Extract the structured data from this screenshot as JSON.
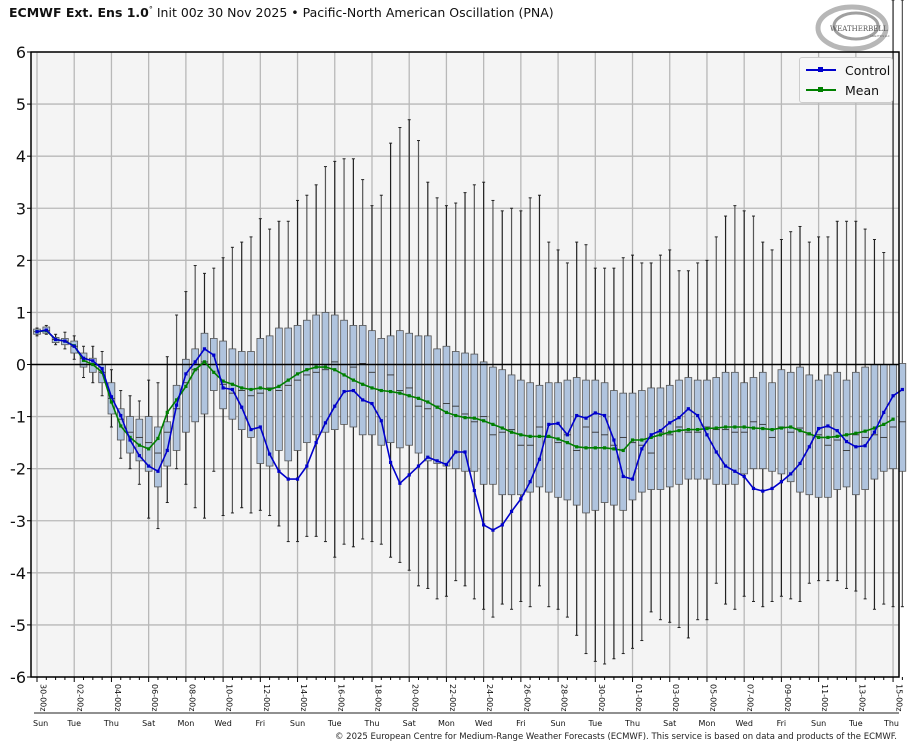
{
  "title": {
    "bold": "ECMWF Ext.  Ens 1.0",
    "degree": "°",
    "rest": " Init 00z 30 Nov 2025 • Pacific-North American Oscillation (PNA)"
  },
  "logo": {
    "text": "WEATHERBELL",
    "subtext": "ANALYTICS LLC"
  },
  "copyright": "© 2025 European Centre for Medium-Range Weather Forecasts (ECMWF). This service is based on data and products of the ECMWF.",
  "colors": {
    "control": "#0000cc",
    "mean": "#008000",
    "box": "#b0c4de",
    "grid": "#b8b8b8",
    "bg": "#f4f4f4"
  },
  "chart_data": {
    "type": "box",
    "title": "Pacific-North American Oscillation (PNA)",
    "ylim": [
      -6,
      6
    ],
    "yticks": [
      "6",
      "5",
      "4",
      "3",
      "2",
      "1",
      "0",
      "-1",
      "-2",
      "-3",
      "-4",
      "-5",
      "-6"
    ],
    "x_step_hours": 12,
    "xtick_labels": [
      "30-00z",
      "02-00z",
      "04-00z",
      "06-00z",
      "08-00z",
      "10-00z",
      "12-00z",
      "14-00z",
      "16-00z",
      "18-00z",
      "20-00z",
      "22-00z",
      "24-00z",
      "26-00z",
      "28-00z",
      "30-00z",
      "01-00z",
      "03-00z",
      "05-00z",
      "07-00z",
      "09-00z",
      "11-00z",
      "13-00z",
      "15-00z"
    ],
    "day_labels": [
      "Sun",
      "Tue",
      "Thu",
      "Sat",
      "Mon",
      "Wed",
      "Fri",
      "Sun",
      "Tue",
      "Thu",
      "Sat",
      "Mon",
      "Wed",
      "Fri",
      "Sun",
      "Tue",
      "Thu",
      "Sat",
      "Mon",
      "Wed",
      "Fri",
      "Sun",
      "Tue",
      "Thu"
    ],
    "legend": {
      "entries": [
        "Control",
        "Mean"
      ],
      "position": "top-right"
    },
    "grid": true,
    "series": [
      {
        "name": "Control",
        "values": [
          0.63,
          0.66,
          0.48,
          0.45,
          0.35,
          0.12,
          0.07,
          -0.08,
          -0.62,
          -0.98,
          -1.45,
          -1.75,
          -1.95,
          -2.05,
          -1.65,
          -0.78,
          -0.18,
          0.05,
          0.3,
          0.18,
          -0.45,
          -0.48,
          -0.82,
          -1.25,
          -1.2,
          -1.72,
          -2.05,
          -2.2,
          -2.2,
          -1.95,
          -1.5,
          -1.12,
          -0.8,
          -0.52,
          -0.5,
          -0.68,
          -0.75,
          -1.08,
          -1.88,
          -2.28,
          -2.12,
          -1.95,
          -1.78,
          -1.85,
          -1.92,
          -1.68,
          -1.68,
          -2.42,
          -3.08,
          -3.18,
          -3.08,
          -2.82,
          -2.58,
          -2.25,
          -1.82,
          -1.15,
          -1.13,
          -1.35,
          -0.98,
          -1.03,
          -0.93,
          -0.98,
          -1.45,
          -2.15,
          -2.2,
          -1.62,
          -1.35,
          -1.27,
          -1.12,
          -1.02,
          -0.85,
          -0.98,
          -1.35,
          -1.68,
          -1.95,
          -2.05,
          -2.15,
          -2.38,
          -2.43,
          -2.38,
          -2.25,
          -2.1,
          -1.9,
          -1.58,
          -1.23,
          -1.18,
          -1.27,
          -1.48,
          -1.58,
          -1.56,
          -1.3,
          -0.92,
          -0.6,
          -0.48
        ]
      },
      {
        "name": "Mean",
        "values": [
          0.63,
          0.65,
          0.48,
          0.45,
          0.36,
          0.08,
          0.0,
          -0.15,
          -0.72,
          -1.18,
          -1.4,
          -1.55,
          -1.62,
          -1.42,
          -0.92,
          -0.68,
          -0.42,
          -0.1,
          0.05,
          -0.15,
          -0.32,
          -0.38,
          -0.45,
          -0.48,
          -0.45,
          -0.48,
          -0.42,
          -0.3,
          -0.18,
          -0.1,
          -0.05,
          -0.05,
          -0.1,
          -0.2,
          -0.3,
          -0.38,
          -0.45,
          -0.5,
          -0.52,
          -0.55,
          -0.6,
          -0.65,
          -0.72,
          -0.82,
          -0.92,
          -0.98,
          -1.02,
          -1.03,
          -1.08,
          -1.15,
          -1.22,
          -1.3,
          -1.35,
          -1.38,
          -1.38,
          -1.38,
          -1.43,
          -1.5,
          -1.58,
          -1.6,
          -1.6,
          -1.6,
          -1.62,
          -1.65,
          -1.45,
          -1.45,
          -1.4,
          -1.35,
          -1.3,
          -1.27,
          -1.25,
          -1.25,
          -1.23,
          -1.22,
          -1.2,
          -1.2,
          -1.2,
          -1.22,
          -1.23,
          -1.25,
          -1.22,
          -1.2,
          -1.27,
          -1.33,
          -1.4,
          -1.4,
          -1.38,
          -1.35,
          -1.32,
          -1.28,
          -1.22,
          -1.15,
          -1.05
        ]
      }
    ],
    "box_stats": {
      "median": [
        0.63,
        0.65,
        0.48,
        0.45,
        0.35,
        0.12,
        0.0,
        -0.15,
        -0.65,
        -1.05,
        -1.3,
        -1.4,
        -1.5,
        -1.7,
        -1.3,
        -0.85,
        -0.35,
        -0.1,
        0.05,
        0.0,
        -0.38,
        -0.55,
        -0.5,
        -0.6,
        -0.55,
        -0.45,
        -0.5,
        -0.4,
        -0.3,
        -0.2,
        -0.15,
        -0.1,
        0.05,
        0.0,
        -0.05,
        0.02,
        -0.15,
        -0.5,
        -0.2,
        -0.5,
        -0.45,
        -0.8,
        -0.85,
        -0.8,
        -0.75,
        -0.8,
        -0.95,
        -1.1,
        -1.0,
        -1.35,
        -1.3,
        -1.25,
        -1.55,
        -1.55,
        -1.2,
        -1.4,
        -1.5,
        -1.35,
        -1.65,
        -1.2,
        -1.3,
        -1.35,
        -1.55,
        -1.4,
        -1.5,
        -1.55,
        -1.7,
        -1.3,
        -1.35,
        -1.2,
        -1.3,
        -1.3,
        -1.2,
        -1.25,
        -1.25,
        -1.3,
        -1.3,
        -1.1,
        -1.15,
        -1.4,
        -1.2,
        -1.3,
        -1.22,
        -1.35,
        -1.35,
        -1.55,
        -1.45,
        -1.65,
        -1.35,
        -1.4,
        -1.35,
        -1.4,
        -1.2,
        -1.1
      ],
      "q1": [
        0.58,
        0.6,
        0.42,
        0.38,
        0.22,
        -0.05,
        -0.15,
        -0.35,
        -0.95,
        -1.45,
        -1.7,
        -1.85,
        -2.05,
        -2.35,
        -1.95,
        -1.65,
        -1.3,
        -1.1,
        -0.95,
        -0.5,
        -0.85,
        -1.05,
        -1.25,
        -1.4,
        -1.9,
        -1.95,
        -1.65,
        -1.85,
        -1.65,
        -1.5,
        -1.35,
        -1.3,
        -1.25,
        -1.15,
        -1.2,
        -1.35,
        -1.35,
        -1.55,
        -1.5,
        -1.6,
        -1.55,
        -1.7,
        -1.85,
        -1.9,
        -1.95,
        -2.0,
        -2.05,
        -2.05,
        -2.3,
        -2.3,
        -2.5,
        -2.5,
        -2.5,
        -2.45,
        -2.35,
        -2.45,
        -2.55,
        -2.6,
        -2.7,
        -2.85,
        -2.8,
        -2.65,
        -2.7,
        -2.8,
        -2.6,
        -2.45,
        -2.4,
        -2.4,
        -2.35,
        -2.3,
        -2.2,
        -2.2,
        -2.2,
        -2.3,
        -2.3,
        -2.3,
        -2.1,
        -2.0,
        -2.0,
        -2.05,
        -2.1,
        -2.25,
        -2.45,
        -2.5,
        -2.55,
        -2.55,
        -2.4,
        -2.35,
        -2.5,
        -2.4,
        -2.2,
        -2.05,
        -2.0,
        -2.05
      ],
      "q3": [
        0.68,
        0.72,
        0.52,
        0.5,
        0.45,
        0.22,
        0.12,
        0.0,
        -0.35,
        -0.85,
        -1.0,
        -1.05,
        -1.0,
        -1.2,
        -1.1,
        -0.4,
        0.1,
        0.3,
        0.6,
        0.5,
        0.45,
        0.3,
        0.25,
        0.25,
        0.5,
        0.55,
        0.7,
        0.7,
        0.75,
        0.85,
        0.95,
        1.0,
        0.95,
        0.85,
        0.75,
        0.75,
        0.65,
        0.5,
        0.55,
        0.65,
        0.6,
        0.55,
        0.55,
        0.3,
        0.35,
        0.25,
        0.22,
        0.2,
        0.05,
        -0.05,
        -0.1,
        -0.2,
        -0.3,
        -0.35,
        -0.4,
        -0.35,
        -0.35,
        -0.3,
        -0.25,
        -0.3,
        -0.3,
        -0.35,
        -0.5,
        -0.55,
        -0.55,
        -0.5,
        -0.45,
        -0.45,
        -0.4,
        -0.3,
        -0.25,
        -0.3,
        -0.3,
        -0.25,
        -0.15,
        -0.15,
        -0.35,
        -0.25,
        -0.15,
        -0.35,
        -0.1,
        -0.15,
        -0.05,
        -0.2,
        -0.3,
        -0.2,
        -0.15,
        -0.3,
        -0.15,
        -0.05,
        0.0,
        0.0,
        0.0,
        0.02
      ],
      "min": [
        0.55,
        0.58,
        0.38,
        0.3,
        0.1,
        -0.25,
        -0.35,
        -0.6,
        -1.2,
        -1.8,
        -2.0,
        -2.3,
        -2.95,
        -3.15,
        -2.65,
        -2.0,
        -2.3,
        -2.75,
        -2.95,
        -2.05,
        -2.9,
        -2.85,
        -2.75,
        -2.85,
        -2.8,
        -2.9,
        -3.1,
        -3.4,
        -3.4,
        -3.3,
        -3.3,
        -3.4,
        -3.7,
        -3.45,
        -3.5,
        -3.35,
        -3.4,
        -3.45,
        -3.7,
        -3.8,
        -3.95,
        -4.25,
        -4.3,
        -4.5,
        -4.45,
        -4.15,
        -4.25,
        -4.5,
        -4.7,
        -4.85,
        -4.6,
        -4.7,
        -4.55,
        -4.65,
        -4.25,
        -4.65,
        -4.7,
        -4.85,
        -5.2,
        -5.55,
        -5.7,
        -5.75,
        -5.65,
        -5.55,
        -5.45,
        -5.3,
        -4.75,
        -4.9,
        -4.95,
        -5.05,
        -5.25,
        -4.9,
        -4.9,
        -4.2,
        -4.6,
        -4.7,
        -4.45,
        -4.55,
        -4.65,
        -4.55,
        -4.45,
        -4.5,
        -4.55,
        -4.2,
        -4.15,
        -4.15,
        -4.15,
        -4.3,
        -4.35,
        -4.5,
        -4.7,
        -4.6,
        -4.65,
        -4.65
      ],
      "max": [
        0.7,
        0.75,
        0.58,
        0.62,
        0.55,
        0.35,
        0.35,
        0.25,
        -0.1,
        -0.5,
        -0.6,
        -0.7,
        -0.3,
        -0.35,
        0.15,
        0.95,
        1.4,
        1.9,
        1.75,
        1.85,
        2.05,
        2.25,
        2.35,
        2.45,
        2.8,
        2.6,
        2.75,
        2.75,
        3.15,
        3.25,
        3.45,
        3.8,
        3.9,
        3.95,
        3.95,
        3.55,
        3.05,
        3.25,
        4.25,
        4.55,
        4.7,
        4.3,
        3.5,
        3.2,
        3.05,
        3.1,
        3.3,
        3.45,
        3.5,
        3.15,
        2.95,
        3.0,
        2.95,
        3.2,
        3.25,
        2.35,
        2.2,
        1.95,
        2.35,
        2.3,
        1.85,
        1.85,
        1.85,
        2.05,
        2.1,
        1.95,
        1.95,
        2.1,
        2.2,
        1.8,
        1.8,
        1.95,
        2.0,
        2.45,
        2.85,
        3.05,
        2.95,
        2.85,
        2.35,
        2.2,
        2.4,
        2.55,
        2.65,
        2.35,
        2.45,
        2.45,
        2.75,
        2.75,
        2.75,
        2.6,
        2.4,
        2.15
      ]
    }
  }
}
